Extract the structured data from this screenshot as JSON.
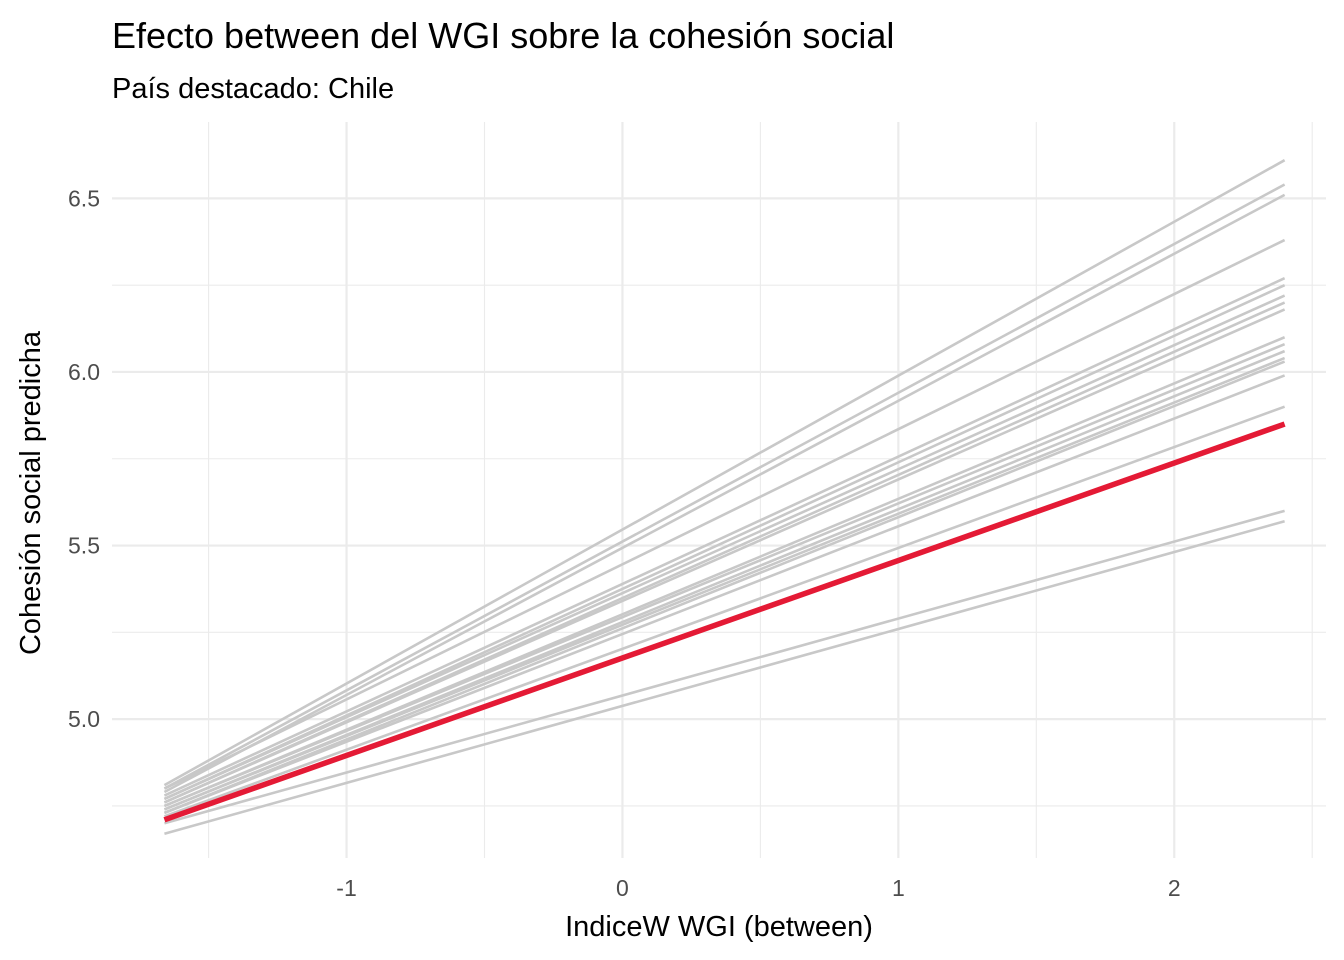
{
  "chart_data": {
    "type": "line",
    "title": "Efecto between del WGI sobre la cohesión social",
    "subtitle": "País destacado: Chile",
    "xlabel": "IndiceW WGI (between)",
    "ylabel": "Cohesión social predicha",
    "xlim": [
      -1.85,
      2.55
    ],
    "ylim": [
      4.6,
      6.72
    ],
    "x_ticks": [
      -1,
      0,
      1,
      2
    ],
    "x_tick_labels": [
      "-1",
      "0",
      "1",
      "2"
    ],
    "y_ticks": [
      5.0,
      5.5,
      6.0,
      6.5
    ],
    "y_tick_labels": [
      "5.0",
      "5.5",
      "6.0",
      "6.5"
    ],
    "x_range": [
      -1.66,
      2.4
    ],
    "grid": true,
    "colors": {
      "background_lines": "#c8c8c8",
      "highlight": "#e41a35"
    },
    "background_series": [
      {
        "y": [
          4.81,
          6.61
        ]
      },
      {
        "y": [
          4.8,
          6.54
        ]
      },
      {
        "y": [
          4.79,
          6.51
        ]
      },
      {
        "y": [
          4.8,
          6.38
        ]
      },
      {
        "y": [
          4.78,
          6.27
        ]
      },
      {
        "y": [
          4.77,
          6.25
        ]
      },
      {
        "y": [
          4.77,
          6.22
        ]
      },
      {
        "y": [
          4.76,
          6.2
        ]
      },
      {
        "y": [
          4.76,
          6.18
        ]
      },
      {
        "y": [
          4.75,
          6.1
        ]
      },
      {
        "y": [
          4.75,
          6.08
        ]
      },
      {
        "y": [
          4.74,
          6.06
        ]
      },
      {
        "y": [
          4.74,
          6.04
        ]
      },
      {
        "y": [
          4.73,
          6.03
        ]
      },
      {
        "y": [
          4.73,
          5.99
        ]
      },
      {
        "y": [
          4.72,
          5.9
        ]
      },
      {
        "y": [
          4.7,
          5.6
        ]
      },
      {
        "y": [
          4.67,
          5.57
        ]
      }
    ],
    "highlight_series": {
      "name": "Chile",
      "y": [
        4.71,
        5.85
      ]
    }
  }
}
